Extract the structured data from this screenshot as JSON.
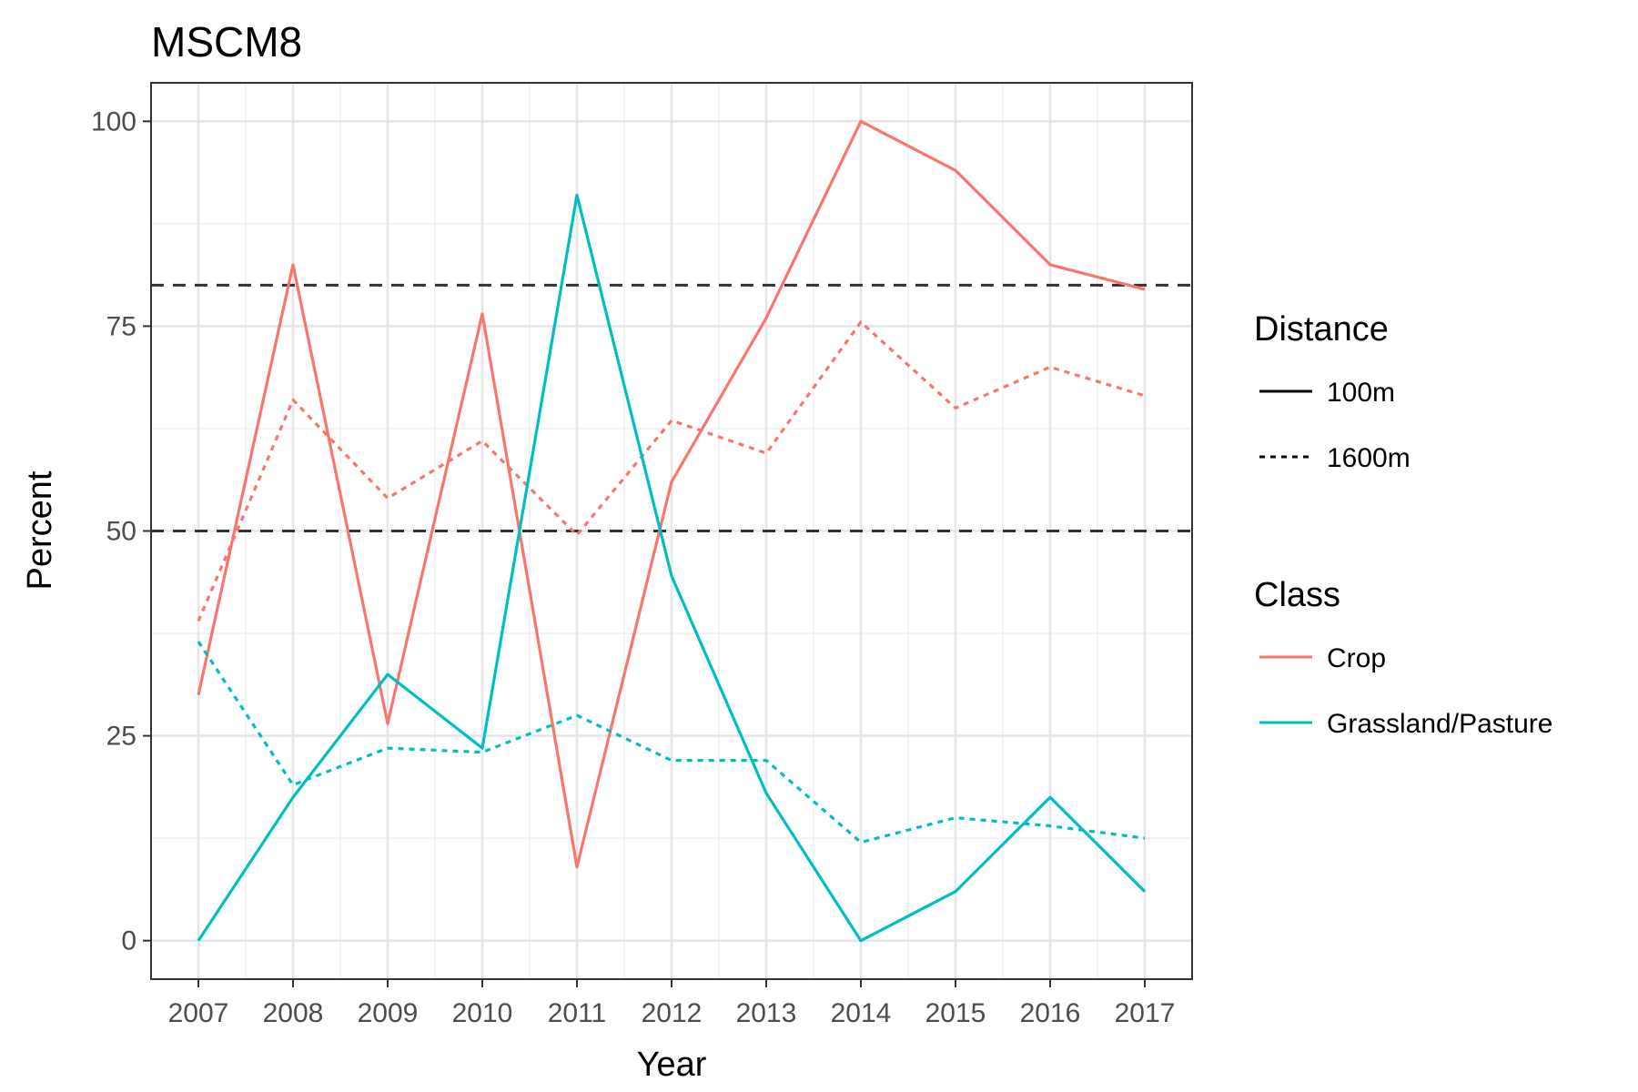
{
  "chart_data": {
    "type": "line",
    "title": "MSCM8",
    "xlabel": "Year",
    "ylabel": "Percent",
    "x": [
      2007,
      2008,
      2009,
      2010,
      2011,
      2012,
      2013,
      2014,
      2015,
      2016,
      2017
    ],
    "xlim": [
      2006.5,
      2017.5
    ],
    "ylim": [
      -4.7,
      104.7
    ],
    "yticks": [
      0,
      25,
      50,
      75,
      100
    ],
    "grid": true,
    "reference_lines": [
      {
        "y": 80,
        "style": "dashed",
        "color": "#333333"
      },
      {
        "y": 50,
        "style": "dashed",
        "color": "#333333"
      }
    ],
    "series": [
      {
        "class": "Crop",
        "distance": "100m",
        "color": "#F8766D",
        "dash": "solid",
        "values": [
          30,
          82.5,
          26.5,
          76.5,
          9,
          56,
          76,
          100,
          94,
          82.5,
          79.5
        ]
      },
      {
        "class": "Crop",
        "distance": "1600m",
        "color": "#F8766D",
        "dash": "dotted",
        "values": [
          39,
          66,
          54,
          61,
          49.5,
          63.5,
          59.5,
          75.5,
          65,
          70,
          66.5
        ]
      },
      {
        "class": "Grassland/Pasture",
        "distance": "100m",
        "color": "#00BFC4",
        "dash": "solid",
        "values": [
          0,
          17.5,
          32.5,
          23.5,
          91,
          44.5,
          18,
          0,
          6,
          17.5,
          6
        ]
      },
      {
        "class": "Grassland/Pasture",
        "distance": "1600m",
        "color": "#00BFC4",
        "dash": "dotted",
        "values": [
          36.5,
          19,
          23.5,
          23,
          27.5,
          22,
          22,
          12,
          15,
          14,
          12.5
        ]
      }
    ],
    "legend": {
      "placement": "right",
      "distance": {
        "title": "Distance",
        "items": [
          {
            "label": "100m",
            "dash": "solid"
          },
          {
            "label": "1600m",
            "dash": "dotted"
          }
        ]
      },
      "class": {
        "title": "Class",
        "items": [
          {
            "label": "Crop",
            "color": "#F8766D"
          },
          {
            "label": "Grassland/Pasture",
            "color": "#00BFC4"
          }
        ]
      }
    }
  }
}
